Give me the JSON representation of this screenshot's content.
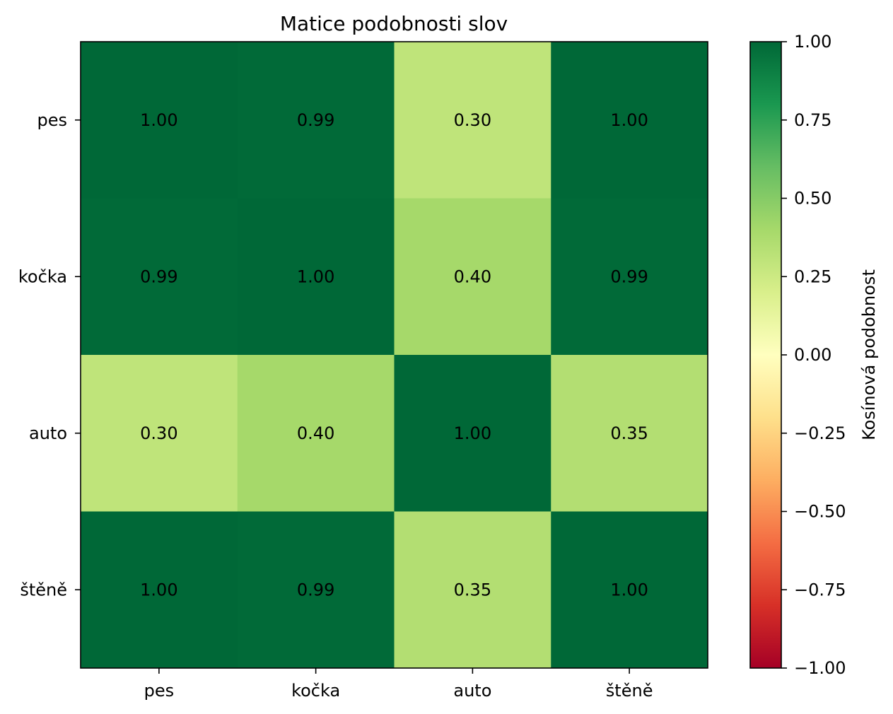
{
  "chart_data": {
    "type": "heatmap",
    "title": "Matice podobnosti slov",
    "x_labels": [
      "pes",
      "kočka",
      "auto",
      "štěně"
    ],
    "y_labels": [
      "pes",
      "kočka",
      "auto",
      "štěně"
    ],
    "values": [
      [
        1.0,
        0.99,
        0.3,
        1.0
      ],
      [
        0.99,
        1.0,
        0.4,
        0.99
      ],
      [
        0.3,
        0.4,
        1.0,
        0.35
      ],
      [
        1.0,
        0.99,
        0.35,
        1.0
      ]
    ],
    "cell_labels": [
      [
        "1.00",
        "0.99",
        "0.30",
        "1.00"
      ],
      [
        "0.99",
        "1.00",
        "0.40",
        "0.99"
      ],
      [
        "0.30",
        "0.40",
        "1.00",
        "0.35"
      ],
      [
        "1.00",
        "0.99",
        "0.35",
        "1.00"
      ]
    ],
    "colormap": "RdYlGn",
    "vmin": -1.0,
    "vmax": 1.0,
    "colorbar": {
      "label": "Kosínová podobnost",
      "ticks": [
        1.0,
        0.75,
        0.5,
        0.25,
        0.0,
        -0.25,
        -0.5,
        -0.75,
        -1.0
      ],
      "tick_labels": [
        "1.00",
        "0.75",
        "0.50",
        "0.25",
        "0.00",
        "−0.25",
        "−0.50",
        "−0.75",
        "−1.00"
      ],
      "position": "right"
    }
  }
}
